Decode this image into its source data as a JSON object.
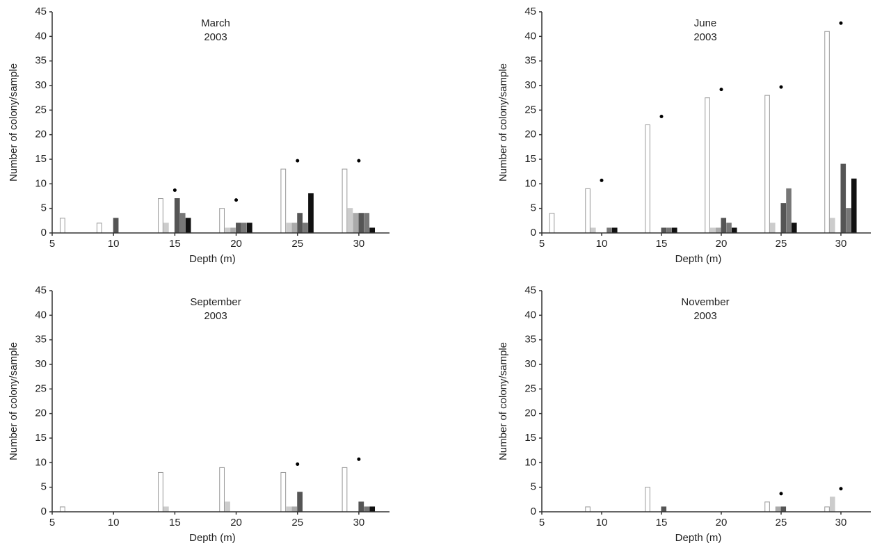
{
  "chart_data": [
    {
      "type": "bar",
      "title": [
        "March",
        "2003"
      ],
      "xlabel": "Depth (m)",
      "ylabel": "Number of colony/sample",
      "x": [
        7,
        10,
        15,
        20,
        25,
        30
      ],
      "xlim": [
        5,
        32.5
      ],
      "xticks": [
        5,
        10,
        15,
        20,
        25,
        30
      ],
      "ylim": [
        0,
        45
      ],
      "yticks": [
        0,
        5,
        10,
        15,
        20,
        25,
        30,
        35,
        40,
        45
      ],
      "series": [
        {
          "color": "#ffffff",
          "values": [
            3,
            2,
            7,
            5,
            13,
            13
          ]
        },
        {
          "color": "#cccccc",
          "values": [
            0,
            0,
            2,
            1,
            2,
            5
          ]
        },
        {
          "color": "#aaaaaa",
          "values": [
            0,
            0,
            0,
            1,
            2,
            4
          ]
        },
        {
          "color": "#555555",
          "values": [
            0,
            3,
            7,
            2,
            4,
            4
          ]
        },
        {
          "color": "#777777",
          "values": [
            0,
            0,
            4,
            2,
            2,
            4
          ]
        },
        {
          "color": "#111111",
          "values": [
            0,
            0,
            3,
            2,
            8,
            1
          ]
        }
      ],
      "dots": [
        15,
        20,
        25,
        30
      ]
    },
    {
      "type": "bar",
      "title": [
        "June",
        "2003"
      ],
      "xlabel": "Depth (m)",
      "ylabel": "Number of colony/sample",
      "x": [
        7,
        10,
        15,
        20,
        25,
        30
      ],
      "xlim": [
        5,
        32.5
      ],
      "xticks": [
        5,
        10,
        15,
        20,
        25,
        30
      ],
      "ylim": [
        0,
        45
      ],
      "yticks": [
        0,
        5,
        10,
        15,
        20,
        25,
        30,
        35,
        40,
        45
      ],
      "series": [
        {
          "color": "#ffffff",
          "values": [
            4,
            9,
            22,
            27.5,
            28,
            41
          ]
        },
        {
          "color": "#cccccc",
          "values": [
            0,
            1,
            0,
            1,
            2,
            3
          ]
        },
        {
          "color": "#aaaaaa",
          "values": [
            0,
            0,
            0,
            1,
            0,
            0
          ]
        },
        {
          "color": "#555555",
          "values": [
            0,
            0,
            1,
            3,
            6,
            14
          ]
        },
        {
          "color": "#777777",
          "values": [
            0,
            1,
            1,
            2,
            9,
            5
          ]
        },
        {
          "color": "#111111",
          "values": [
            0,
            1,
            1,
            1,
            2,
            11
          ]
        }
      ],
      "dots": [
        10,
        15,
        20,
        25,
        30
      ]
    },
    {
      "type": "bar",
      "title": [
        "September",
        "2003"
      ],
      "xlabel": "Depth (m)",
      "ylabel": "Number of colony/sample",
      "x": [
        7,
        10,
        15,
        20,
        25,
        30
      ],
      "xlim": [
        5,
        32.5
      ],
      "xticks": [
        5,
        10,
        15,
        20,
        25,
        30
      ],
      "ylim": [
        0,
        45
      ],
      "yticks": [
        0,
        5,
        10,
        15,
        20,
        25,
        30,
        35,
        40,
        45
      ],
      "series": [
        {
          "color": "#ffffff",
          "values": [
            1,
            0,
            8,
            9,
            8,
            9
          ]
        },
        {
          "color": "#cccccc",
          "values": [
            0,
            0,
            1,
            2,
            1,
            0
          ]
        },
        {
          "color": "#aaaaaa",
          "values": [
            0,
            0,
            0,
            0,
            1,
            0
          ]
        },
        {
          "color": "#555555",
          "values": [
            0,
            0,
            0,
            0,
            4,
            2
          ]
        },
        {
          "color": "#777777",
          "values": [
            0,
            0,
            0,
            0,
            0,
            1
          ]
        },
        {
          "color": "#111111",
          "values": [
            0,
            0,
            0,
            0,
            0,
            1
          ]
        }
      ],
      "dots": [
        25,
        30
      ]
    },
    {
      "type": "bar",
      "title": [
        "November",
        "2003"
      ],
      "xlabel": "Depth (m)",
      "ylabel": "Number of colony/sample",
      "x": [
        7,
        10,
        15,
        20,
        25,
        30
      ],
      "xlim": [
        5,
        32.5
      ],
      "xticks": [
        5,
        10,
        15,
        20,
        25,
        30
      ],
      "ylim": [
        0,
        45
      ],
      "yticks": [
        0,
        5,
        10,
        15,
        20,
        25,
        30,
        35,
        40,
        45
      ],
      "series": [
        {
          "color": "#ffffff",
          "values": [
            0,
            1,
            5,
            0,
            2,
            1
          ]
        },
        {
          "color": "#cccccc",
          "values": [
            0,
            0,
            0,
            0,
            0,
            3
          ]
        },
        {
          "color": "#aaaaaa",
          "values": [
            0,
            0,
            0,
            0,
            1,
            0
          ]
        },
        {
          "color": "#555555",
          "values": [
            0,
            0,
            1,
            0,
            1,
            0
          ]
        },
        {
          "color": "#777777",
          "values": [
            0,
            0,
            0,
            0,
            0,
            0
          ]
        },
        {
          "color": "#111111",
          "values": [
            0,
            0,
            0,
            0,
            0,
            0
          ]
        }
      ],
      "dots": [
        25,
        30
      ]
    }
  ]
}
